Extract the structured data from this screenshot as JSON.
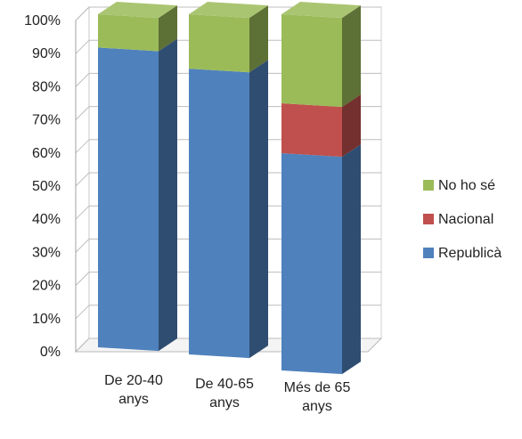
{
  "chart_data": {
    "type": "bar",
    "stacked": true,
    "percent": true,
    "three_d": true,
    "categories": [
      [
        "De 20-40",
        "anys"
      ],
      [
        "De 40-65",
        "anys"
      ],
      [
        "Més de 65",
        "anys"
      ]
    ],
    "series": [
      {
        "name": "Republicà",
        "values": [
          90,
          84,
          61
        ],
        "color": "#4f81bd"
      },
      {
        "name": "Nacional",
        "values": [
          0,
          0,
          14
        ],
        "color": "#c0504d"
      },
      {
        "name": "No ho sé",
        "values": [
          10,
          16,
          25
        ],
        "color": "#9bbb59"
      }
    ],
    "y_ticks": [
      "0%",
      "10%",
      "20%",
      "30%",
      "40%",
      "50%",
      "60%",
      "70%",
      "80%",
      "90%",
      "100%"
    ],
    "ylim": [
      0,
      100
    ],
    "grid": true,
    "legend_position": "right",
    "legend_order": [
      "No ho sé",
      "Nacional",
      "Republicà"
    ]
  }
}
